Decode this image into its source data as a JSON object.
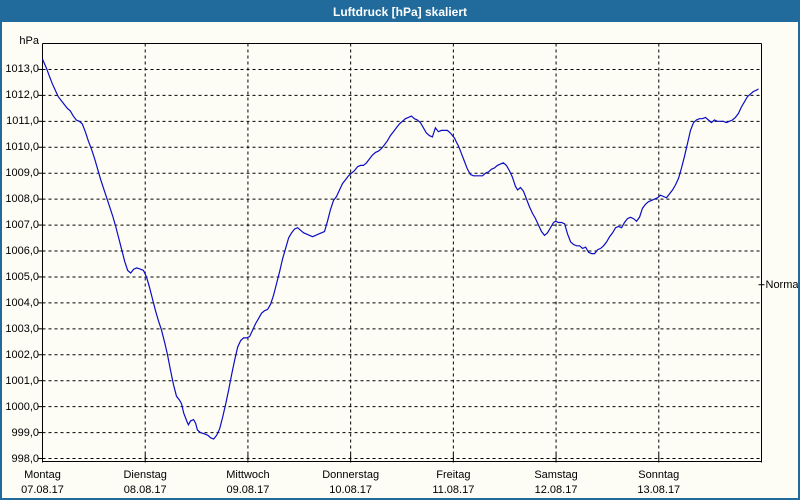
{
  "window": {
    "title": "Luftdruck [hPa] skaliert",
    "titlebar_color": "#206a9c",
    "border_color": "#206a9c",
    "background_color": "#fdfdf5"
  },
  "chart_data": {
    "type": "line",
    "title": "Luftdruck [hPa] skaliert",
    "ylabel": "hPa",
    "xlabel": "",
    "grid": "dashed",
    "legend": "none",
    "line_color": "#0d0dc4",
    "axis_color": "#000000",
    "y_axis": {
      "min": 998,
      "max": 1014,
      "tick_step": 1,
      "tick_values": [
        1013,
        1012,
        1011,
        1010,
        1009,
        1008,
        1007,
        1006,
        1005,
        1004,
        1003,
        1002,
        1001,
        1000,
        999,
        998
      ],
      "tick_labels": [
        "1013,0",
        "1012,0",
        "1011,0",
        "1010,0",
        "1009,0",
        "1008,0",
        "1007,0",
        "1006,0",
        "1005,0",
        "1004,0",
        "1003,0",
        "1002,0",
        "1001,0",
        "1000,0",
        "999,0",
        "998,0"
      ]
    },
    "x_axis": {
      "unit": "hours_from_monday_00",
      "min": 0,
      "max": 168,
      "day_ticks": [
        {
          "name": "Montag",
          "date": "07.08.17",
          "hour": 0
        },
        {
          "name": "Dienstag",
          "date": "08.08.17",
          "hour": 24
        },
        {
          "name": "Mittwoch",
          "date": "09.08.17",
          "hour": 48
        },
        {
          "name": "Donnerstag",
          "date": "10.08.17",
          "hour": 72
        },
        {
          "name": "Freitag",
          "date": "11.08.17",
          "hour": 96
        },
        {
          "name": "Samstag",
          "date": "12.08.17",
          "hour": 120
        },
        {
          "name": "Sonntag",
          "date": "13.08.17",
          "hour": 144
        }
      ]
    },
    "normal": {
      "label": "Normal",
      "value": 1004.7
    },
    "series": [
      {
        "name": "Luftdruck",
        "points": [
          [
            0,
            1013.4
          ],
          [
            0.9,
            1013.05
          ],
          [
            1.6,
            1012.75
          ],
          [
            2.3,
            1012.45
          ],
          [
            3,
            1012.2
          ],
          [
            3.7,
            1011.95
          ],
          [
            4.4,
            1011.8
          ],
          [
            5.1,
            1011.65
          ],
          [
            5.8,
            1011.5
          ],
          [
            6.5,
            1011.4
          ],
          [
            7.2,
            1011.2
          ],
          [
            7.9,
            1011.05
          ],
          [
            8.6,
            1011
          ],
          [
            9.3,
            1010.9
          ],
          [
            10,
            1010.6
          ],
          [
            10.7,
            1010.25
          ],
          [
            11.5,
            1009.9
          ],
          [
            12.2,
            1009.55
          ],
          [
            12.9,
            1009.15
          ],
          [
            13.6,
            1008.75
          ],
          [
            14.3,
            1008.4
          ],
          [
            15,
            1008.05
          ],
          [
            15.7,
            1007.7
          ],
          [
            16.4,
            1007.35
          ],
          [
            17.1,
            1006.95
          ],
          [
            17.8,
            1006.5
          ],
          [
            18.5,
            1006.05
          ],
          [
            19.2,
            1005.6
          ],
          [
            19.9,
            1005.25
          ],
          [
            20.6,
            1005.15
          ],
          [
            21.3,
            1005.3
          ],
          [
            22,
            1005.35
          ],
          [
            22.9,
            1005.3
          ],
          [
            23.6,
            1005.25
          ],
          [
            24.3,
            1005
          ],
          [
            25,
            1004.6
          ],
          [
            25.7,
            1004.15
          ],
          [
            26.4,
            1003.7
          ],
          [
            27.1,
            1003.3
          ],
          [
            27.8,
            1002.95
          ],
          [
            28.5,
            1002.5
          ],
          [
            29.2,
            1002
          ],
          [
            29.9,
            1001.4
          ],
          [
            30.6,
            1000.85
          ],
          [
            31.3,
            1000.4
          ],
          [
            32,
            1000.25
          ],
          [
            32.5,
            1000.1
          ],
          [
            33,
            999.75
          ],
          [
            33.7,
            999.45
          ],
          [
            34.1,
            999.3
          ],
          [
            34.6,
            999.45
          ],
          [
            35.3,
            999.5
          ],
          [
            35.8,
            999.35
          ],
          [
            36.2,
            999.1
          ],
          [
            36.9,
            999
          ],
          [
            37.9,
            998.95
          ],
          [
            38.6,
            998.9
          ],
          [
            39.3,
            998.8
          ],
          [
            40,
            998.75
          ],
          [
            40.7,
            998.9
          ],
          [
            41.4,
            999.15
          ],
          [
            42.1,
            999.6
          ],
          [
            42.8,
            1000.1
          ],
          [
            43.5,
            1000.65
          ],
          [
            44.2,
            1001.25
          ],
          [
            44.9,
            1001.8
          ],
          [
            45.6,
            1002.3
          ],
          [
            46.3,
            1002.55
          ],
          [
            47,
            1002.65
          ],
          [
            47.7,
            1002.65
          ],
          [
            48.4,
            1002.7
          ],
          [
            49.1,
            1002.95
          ],
          [
            49.8,
            1003.2
          ],
          [
            50.5,
            1003.4
          ],
          [
            51.2,
            1003.6
          ],
          [
            51.9,
            1003.7
          ],
          [
            52.6,
            1003.75
          ],
          [
            53.3,
            1003.95
          ],
          [
            54,
            1004.3
          ],
          [
            54.7,
            1004.75
          ],
          [
            55.4,
            1005.2
          ],
          [
            56.1,
            1005.7
          ],
          [
            56.8,
            1006.1
          ],
          [
            57.5,
            1006.5
          ],
          [
            58.2,
            1006.7
          ],
          [
            58.9,
            1006.85
          ],
          [
            59.6,
            1006.9
          ],
          [
            60.3,
            1006.8
          ],
          [
            61,
            1006.7
          ],
          [
            61.7,
            1006.65
          ],
          [
            62.4,
            1006.6
          ],
          [
            63.1,
            1006.55
          ],
          [
            63.8,
            1006.6
          ],
          [
            64.5,
            1006.65
          ],
          [
            65.2,
            1006.7
          ],
          [
            65.9,
            1006.75
          ],
          [
            66.6,
            1007.15
          ],
          [
            67.3,
            1007.6
          ],
          [
            68,
            1007.95
          ],
          [
            68.7,
            1008.1
          ],
          [
            69.4,
            1008.35
          ],
          [
            70.1,
            1008.6
          ],
          [
            70.8,
            1008.75
          ],
          [
            71.5,
            1008.9
          ],
          [
            72.2,
            1009
          ],
          [
            72.9,
            1009.1
          ],
          [
            73.6,
            1009.25
          ],
          [
            74.3,
            1009.3
          ],
          [
            75,
            1009.3
          ],
          [
            75.7,
            1009.4
          ],
          [
            76.4,
            1009.55
          ],
          [
            77.1,
            1009.7
          ],
          [
            77.8,
            1009.8
          ],
          [
            78.5,
            1009.85
          ],
          [
            79.2,
            1009.95
          ],
          [
            79.9,
            1010.1
          ],
          [
            80.6,
            1010.25
          ],
          [
            81.3,
            1010.45
          ],
          [
            82,
            1010.6
          ],
          [
            82.7,
            1010.75
          ],
          [
            83.4,
            1010.9
          ],
          [
            84.1,
            1011
          ],
          [
            84.8,
            1011.1
          ],
          [
            85.5,
            1011.15
          ],
          [
            86.2,
            1011.2
          ],
          [
            86.9,
            1011.1
          ],
          [
            87.6,
            1011.05
          ],
          [
            88.3,
            1010.95
          ],
          [
            89,
            1010.75
          ],
          [
            89.7,
            1010.55
          ],
          [
            90.4,
            1010.45
          ],
          [
            91.1,
            1010.4
          ],
          [
            91.8,
            1010.75
          ],
          [
            92.5,
            1010.6
          ],
          [
            93.2,
            1010.65
          ],
          [
            93.9,
            1010.65
          ],
          [
            94.6,
            1010.65
          ],
          [
            95.3,
            1010.55
          ],
          [
            95.8,
            1010.45
          ],
          [
            96.3,
            1010.35
          ],
          [
            96.7,
            1010.2
          ],
          [
            97.2,
            1010.05
          ],
          [
            97.9,
            1009.75
          ],
          [
            98.6,
            1009.45
          ],
          [
            99.3,
            1009.15
          ],
          [
            100,
            1008.95
          ],
          [
            100.7,
            1008.9
          ],
          [
            101.4,
            1008.9
          ],
          [
            102.1,
            1008.9
          ],
          [
            102.8,
            1008.9
          ],
          [
            103.5,
            1009
          ],
          [
            104.2,
            1009.05
          ],
          [
            104.9,
            1009.15
          ],
          [
            105.6,
            1009.2
          ],
          [
            106.3,
            1009.3
          ],
          [
            107,
            1009.35
          ],
          [
            107.7,
            1009.4
          ],
          [
            108.4,
            1009.3
          ],
          [
            109.1,
            1009.1
          ],
          [
            109.8,
            1008.85
          ],
          [
            110.5,
            1008.5
          ],
          [
            111,
            1008.35
          ],
          [
            111.7,
            1008.45
          ],
          [
            112.4,
            1008.3
          ],
          [
            113.1,
            1008
          ],
          [
            113.8,
            1007.7
          ],
          [
            114.5,
            1007.45
          ],
          [
            115.2,
            1007.25
          ],
          [
            115.9,
            1007
          ],
          [
            116.6,
            1006.75
          ],
          [
            117.3,
            1006.6
          ],
          [
            118,
            1006.7
          ],
          [
            118.7,
            1006.9
          ],
          [
            119.4,
            1007.1
          ],
          [
            119.9,
            1007.15
          ],
          [
            120.6,
            1007.1
          ],
          [
            121.3,
            1007.1
          ],
          [
            122,
            1007.05
          ],
          [
            122.7,
            1006.65
          ],
          [
            123.4,
            1006.35
          ],
          [
            124.1,
            1006.25
          ],
          [
            124.8,
            1006.2
          ],
          [
            125.5,
            1006.2
          ],
          [
            126.2,
            1006.1
          ],
          [
            126.9,
            1006.15
          ],
          [
            127.6,
            1005.95
          ],
          [
            128.3,
            1005.9
          ],
          [
            129,
            1005.9
          ],
          [
            129.7,
            1006.05
          ],
          [
            130.4,
            1006.1
          ],
          [
            131.1,
            1006.2
          ],
          [
            131.8,
            1006.35
          ],
          [
            132.5,
            1006.55
          ],
          [
            133.2,
            1006.7
          ],
          [
            133.9,
            1006.9
          ],
          [
            134.6,
            1006.95
          ],
          [
            135.3,
            1006.9
          ],
          [
            136,
            1007.1
          ],
          [
            136.7,
            1007.25
          ],
          [
            137.4,
            1007.3
          ],
          [
            138.1,
            1007.25
          ],
          [
            138.8,
            1007.15
          ],
          [
            139.5,
            1007.3
          ],
          [
            140.2,
            1007.65
          ],
          [
            140.9,
            1007.8
          ],
          [
            141.6,
            1007.9
          ],
          [
            142.3,
            1007.95
          ],
          [
            143,
            1008
          ],
          [
            143.7,
            1008.05
          ],
          [
            144.4,
            1008.15
          ],
          [
            145.1,
            1008.1
          ],
          [
            145.8,
            1008.05
          ],
          [
            146.5,
            1008.2
          ],
          [
            147.2,
            1008.35
          ],
          [
            147.9,
            1008.55
          ],
          [
            148.6,
            1008.8
          ],
          [
            149.3,
            1009.2
          ],
          [
            150,
            1009.65
          ],
          [
            150.7,
            1010.15
          ],
          [
            151.4,
            1010.65
          ],
          [
            152.1,
            1010.95
          ],
          [
            152.8,
            1011.05
          ],
          [
            153.5,
            1011.1
          ],
          [
            154.2,
            1011.1
          ],
          [
            154.9,
            1011.15
          ],
          [
            155.6,
            1011.05
          ],
          [
            156.3,
            1010.95
          ],
          [
            157,
            1011.05
          ],
          [
            157.7,
            1011
          ],
          [
            158.4,
            1011
          ],
          [
            159.1,
            1011
          ],
          [
            159.8,
            1010.95
          ],
          [
            160.5,
            1011
          ],
          [
            161.2,
            1011.05
          ],
          [
            161.9,
            1011.15
          ],
          [
            162.6,
            1011.3
          ],
          [
            163.3,
            1011.55
          ],
          [
            164,
            1011.75
          ],
          [
            164.7,
            1011.95
          ],
          [
            165.4,
            1012.05
          ],
          [
            166.1,
            1012.15
          ],
          [
            166.8,
            1012.2
          ],
          [
            167.3,
            1012.25
          ]
        ]
      }
    ]
  }
}
